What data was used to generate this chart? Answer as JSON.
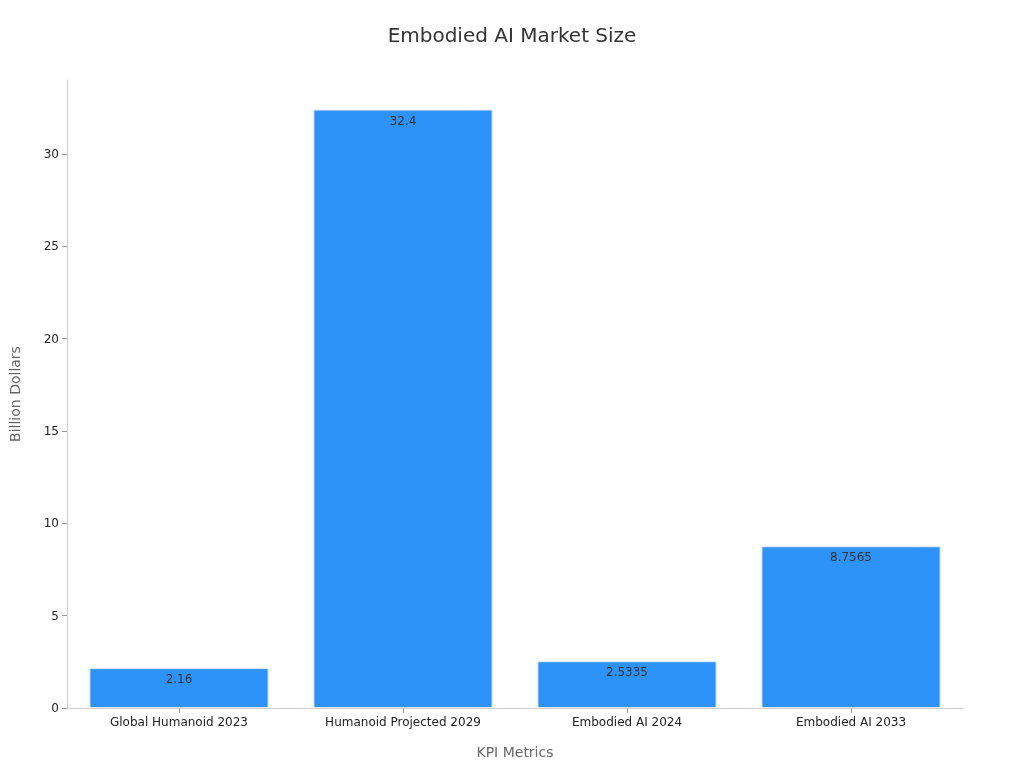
{
  "chart_data": {
    "type": "bar",
    "title": "Embodied AI Market Size",
    "xlabel": "KPI Metrics",
    "ylabel": "Billion Dollars",
    "categories": [
      "Global Humanoid 2023",
      "Humanoid Projected 2029",
      "Embodied AI 2024",
      "Embodied AI 2033"
    ],
    "values": [
      2.16,
      32.4,
      2.5335,
      8.7565
    ],
    "color": "#2e93f8",
    "ylim": [
      0,
      34
    ],
    "yticks": [
      0,
      5,
      10,
      15,
      20,
      25,
      30
    ],
    "grid": false,
    "data_labels": true
  }
}
